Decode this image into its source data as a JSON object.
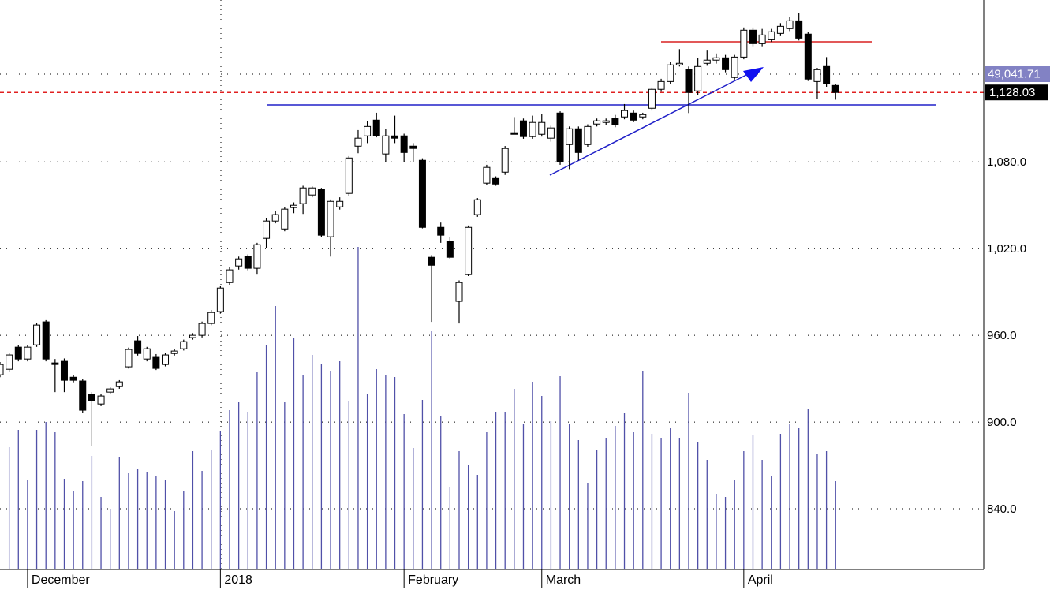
{
  "chart_data": {
    "type": "candlestick",
    "categories": [
      null,
      null,
      null,
      "December",
      null,
      null,
      null,
      null,
      null,
      null,
      null,
      null,
      null,
      null,
      null,
      null,
      null,
      null,
      null,
      null,
      null,
      null,
      null,
      null,
      "2018",
      null,
      null,
      null,
      null,
      null,
      null,
      null,
      null,
      null,
      null,
      null,
      null,
      null,
      null,
      null,
      null,
      null,
      null,
      null,
      "February",
      null,
      null,
      null,
      null,
      null,
      null,
      null,
      null,
      null,
      null,
      null,
      null,
      null,
      null,
      "March",
      null,
      null,
      null,
      null,
      null,
      null,
      null,
      null,
      null,
      null,
      null,
      null,
      null,
      null,
      null,
      null,
      null,
      null,
      null,
      null,
      null,
      "April",
      null,
      null,
      null,
      null,
      null,
      null,
      null,
      null,
      null,
      null
    ],
    "open": [
      932.7,
      936.5,
      951.8,
      943.6,
      953.4,
      969.3,
      940.9,
      942.0,
      931.0,
      928.4,
      919.1,
      912.5,
      920.7,
      924.5,
      938.2,
      956.2,
      943.6,
      945.3,
      939.8,
      947.4,
      950.7,
      958.4,
      960.0,
      968.2,
      976.4,
      996.5,
      1008.0,
      1014.5,
      1006.4,
      1027.1,
      1039.1,
      1033.6,
      1048.4,
      1051.1,
      1057.1,
      1060.9,
      1028.2,
      1048.9,
      1058.2,
      1090.9,
      1098.0,
      1108.9,
      1085.5,
      1098.0,
      1098.0,
      1090.9,
      1081.1,
      1014.0,
      1034.7,
      1024.9,
      983.5,
      1002.0,
      1043.5,
      1065.3,
      1068.5,
      1072.9,
      1100.2,
      1108.4,
      1097.5,
      1099.1,
      1096.4,
      1113.8,
      1092.0,
      1102.9,
      1092.0,
      1106.2,
      1107.3,
      1110.0,
      1111.1,
      1113.8,
      1111.1,
      1117.1,
      1130.2,
      1135.6,
      1147.1,
      1143.8,
      1129.1,
      1148.2,
      1150.4,
      1152.0,
      1138.4,
      1152.5,
      1171.1,
      1161.8,
      1164.5,
      1168.9,
      1172.2,
      1177.6,
      1168.4,
      1135.6,
      1146.0,
      1132.9
    ],
    "high": [
      941.5,
      948,
      953,
      953,
      968.5,
      970.5,
      943.6,
      944,
      932.5,
      930,
      920.7,
      919.5,
      924,
      929,
      951.5,
      959.5,
      952,
      947,
      948,
      950.5,
      957,
      961.5,
      969.5,
      977.5,
      994,
      1007,
      1014.5,
      1016,
      1024,
      1041,
      1046,
      1049,
      1052,
      1063.5,
      1063,
      1062,
      1054,
      1055.5,
      1084,
      1102,
      1108,
      1114,
      1103,
      1112,
      1099.5,
      1093,
      1082.5,
      1015.5,
      1038,
      1028,
      998,
      1036,
      1055,
      1078,
      1070,
      1091,
      1111,
      1110,
      1112,
      1113,
      1105,
      1115,
      1104.5,
      1104.5,
      1106,
      1110,
      1110,
      1112.5,
      1120,
      1115.5,
      1114,
      1131.5,
      1137.5,
      1149,
      1158,
      1146,
      1152,
      1157,
      1155,
      1154,
      1154,
      1173,
      1173,
      1172,
      1172,
      1176,
      1180.5,
      1183,
      1170,
      1145,
      1152.5,
      1134
    ],
    "low": [
      931,
      935,
      942,
      942,
      952,
      942,
      920.7,
      920.7,
      927.5,
      906.5,
      883.6,
      911,
      919.5,
      923,
      937,
      946,
      942,
      936,
      938.5,
      946,
      949.5,
      957,
      958.5,
      967,
      975,
      995,
      1005.5,
      1005,
      1002,
      1020.5,
      1037.5,
      1032,
      1044.5,
      1044,
      1055.5,
      1028,
      1014.5,
      1047,
      1056.5,
      1086,
      1093,
      1097,
      1080,
      1093,
      1080,
      1080,
      1034,
      969.3,
      1024,
      1013,
      968.2,
      1001,
      1042,
      1064,
      1063.5,
      1071,
      1099,
      1096,
      1096,
      1097.5,
      1094,
      1078,
      1075,
      1081,
      1090.5,
      1104.5,
      1105.5,
      1104,
      1109.5,
      1107.5,
      1109.5,
      1115.5,
      1128.5,
      1134,
      1146,
      1113.8,
      1126,
      1146.5,
      1148,
      1142,
      1137,
      1151,
      1160,
      1160,
      1163,
      1167,
      1170.5,
      1164,
      1136,
      1123.5,
      1132,
      1123
    ],
    "close": [
      939.8,
      946.4,
      943.6,
      951.8,
      967.1,
      943.6,
      939.8,
      928.9,
      928.9,
      908.2,
      914.7,
      918.0,
      922.9,
      927.8,
      950.2,
      947.4,
      950.7,
      937.1,
      946.4,
      949.1,
      955.6,
      960.0,
      968.2,
      975.8,
      992.7,
      1005.3,
      1012.9,
      1006.4,
      1022.7,
      1039.1,
      1043.5,
      1047.3,
      1050.0,
      1062.0,
      1062.0,
      1029.3,
      1052.7,
      1052.7,
      1082.7,
      1096.4,
      1104.5,
      1098.0,
      1098.0,
      1096.4,
      1086.5,
      1089.3,
      1034.7,
      1008.5,
      1029.3,
      1014.0,
      996.5,
      1034.7,
      1053.8,
      1076.2,
      1064.7,
      1089.3,
      1099.1,
      1097.5,
      1107.3,
      1107.3,
      1103.5,
      1080.0,
      1102.9,
      1086.5,
      1104.5,
      1108.4,
      1108.4,
      1105.6,
      1115.5,
      1108.9,
      1112.7,
      1130.2,
      1135.6,
      1147.1,
      1148.2,
      1128.0,
      1146.0,
      1150.4,
      1152.0,
      1143.8,
      1152.5,
      1171.1,
      1161.8,
      1167.8,
      1170.0,
      1173.8,
      1177.6,
      1165.6,
      1137.3,
      1143.8,
      1134.0,
      1128.03
    ],
    "volume": [
      null,
      155,
      177,
      114,
      177,
      187,
      174,
      115,
      100,
      112,
      144,
      92,
      77,
      142,
      122,
      127,
      124,
      118,
      114,
      74,
      100,
      150,
      125,
      152,
      175,
      202,
      212,
      200,
      250,
      284,
      334,
      212,
      294,
      247,
      272,
      260,
      252,
      264,
      214,
      409,
      222,
      254,
      246,
      244,
      197,
      154,
      215,
      302,
      194,
      104,
      150,
      132,
      120,
      174,
      200,
      200,
      229,
      184,
      238,
      220,
      188,
      245,
      184,
      164,
      110,
      152,
      167,
      182,
      199,
      174,
      252,
      172,
      167,
      179,
      167,
      224,
      162,
      139,
      96,
      92,
      114,
      150,
      170,
      139,
      119,
      172,
      185,
      180,
      204,
      147,
      150,
      112
    ],
    "vlim": [
      0,
      722
    ],
    "ylim": [
      798,
      1192
    ],
    "yticks": [
      {
        "value": 840,
        "label": "840.0"
      },
      {
        "value": 900,
        "label": "900.0"
      },
      {
        "value": 960,
        "label": "960.0"
      },
      {
        "value": 1020,
        "label": "1,020.0"
      },
      {
        "value": 1080,
        "label": "1,080.0"
      }
    ],
    "last_price": {
      "value": 1128.03,
      "label": "1,128.03"
    },
    "indicator_label": "49,041.71",
    "grid": true,
    "up_color": "#ffffff",
    "down_color": "#000000",
    "volume_color": "#5050a8",
    "last_price_color": "#e02020"
  }
}
